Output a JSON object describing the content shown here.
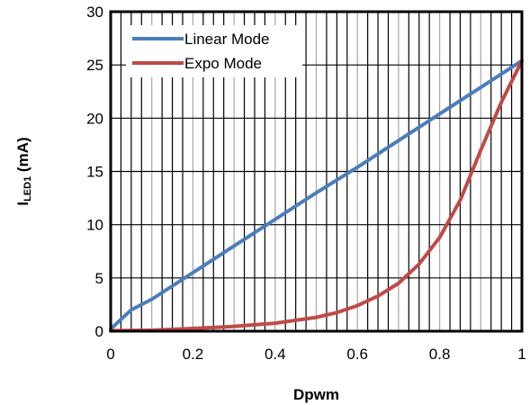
{
  "chart_data": {
    "type": "line",
    "title": "",
    "xlabel": "Dpwm",
    "ylabel_main": "I",
    "ylabel_sub": "LED1",
    "ylabel_suffix": " (mA)",
    "xlim": [
      0,
      1
    ],
    "ylim": [
      0,
      30
    ],
    "xticks": [
      "0",
      "0.2",
      "0.4",
      "0.6",
      "0.8",
      "1"
    ],
    "yticks": [
      "0",
      "5",
      "10",
      "15",
      "20",
      "25",
      "30"
    ],
    "x_minor_step": 0.025,
    "grid": true,
    "legend_position": "top-left",
    "series": [
      {
        "name": "Linear Mode",
        "color": "#4a7ebb",
        "x": [
          0,
          0.05,
          0.1,
          0.2,
          0.3,
          0.4,
          0.5,
          0.6,
          0.7,
          0.8,
          0.9,
          1.0
        ],
        "y": [
          0.2,
          2.0,
          3.0,
          5.5,
          8.0,
          10.5,
          13.0,
          15.4,
          17.9,
          20.4,
          22.9,
          25.4
        ]
      },
      {
        "name": "Expo Mode",
        "color": "#be4b48",
        "x": [
          0,
          0.1,
          0.2,
          0.3,
          0.4,
          0.5,
          0.55,
          0.6,
          0.65,
          0.7,
          0.75,
          0.8,
          0.85,
          0.9,
          0.95,
          1.0
        ],
        "y": [
          0.05,
          0.1,
          0.25,
          0.45,
          0.75,
          1.3,
          1.75,
          2.4,
          3.3,
          4.5,
          6.3,
          8.8,
          12.3,
          17.0,
          21.5,
          25.4
        ]
      }
    ]
  }
}
